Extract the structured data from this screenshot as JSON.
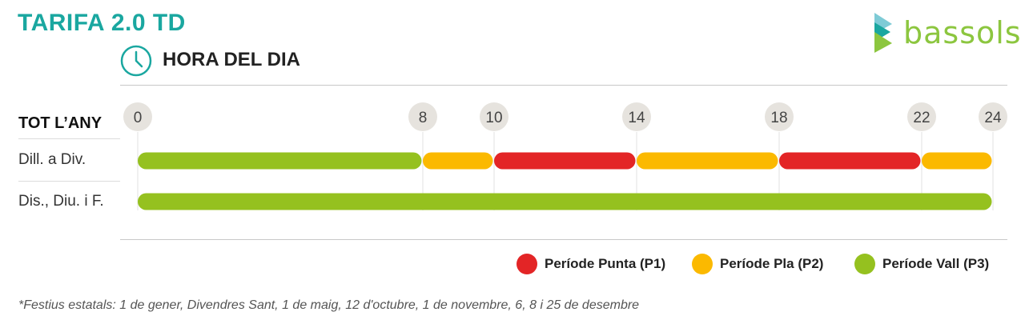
{
  "header": {
    "title": "TARIFA 2.0 TD",
    "subtitle": "HORA DEL DIA",
    "logo_text": "bassols"
  },
  "colors": {
    "title": "#1aa7a0",
    "punta": "#e32526",
    "pla": "#fbb900",
    "vall": "#95c11f",
    "tick_bg": "#e6e3de"
  },
  "chart_data": {
    "type": "bar",
    "axis_label": "TOT L’ANY",
    "xlim": [
      0,
      24
    ],
    "ticks": [
      0,
      8,
      10,
      14,
      18,
      22,
      24
    ],
    "rows": [
      {
        "label": "Dill. a Div.",
        "segments": [
          {
            "start": 0,
            "end": 8,
            "period": "vall"
          },
          {
            "start": 8,
            "end": 10,
            "period": "pla"
          },
          {
            "start": 10,
            "end": 14,
            "period": "punta"
          },
          {
            "start": 14,
            "end": 18,
            "period": "pla"
          },
          {
            "start": 18,
            "end": 22,
            "period": "punta"
          },
          {
            "start": 22,
            "end": 24,
            "period": "pla"
          }
        ]
      },
      {
        "label": "Dis., Diu. i F.",
        "segments": [
          {
            "start": 0,
            "end": 24,
            "period": "vall"
          }
        ]
      }
    ]
  },
  "legend": [
    {
      "key": "punta",
      "label": "Període Punta (P1)"
    },
    {
      "key": "pla",
      "label": "Període Pla (P2)"
    },
    {
      "key": "vall",
      "label": "Període Vall (P3)"
    }
  ],
  "footnote": "*Festius estatals: 1 de gener, Divendres Sant, 1 de maig, 12 d'octubre, 1 de novembre, 6, 8 i 25 de desembre"
}
